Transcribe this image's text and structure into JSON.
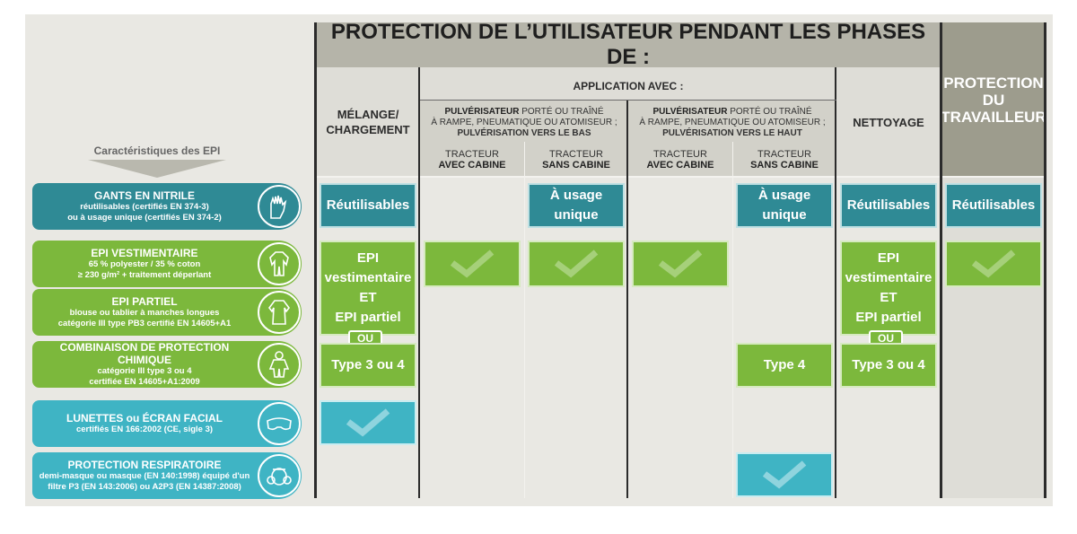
{
  "header": {
    "title": "PROTECTION DE L’UTILISATEUR PENDANT LES PHASES DE :",
    "protection_travailleur": [
      "PROTECTION",
      "DU",
      "TRAVAILLEUR"
    ],
    "melange": [
      "MÉLANGE/",
      "CHARGEMENT"
    ],
    "application": "APPLICATION AVEC :",
    "nettoyage": "NETTOYAGE",
    "pulv_bas": {
      "strong": "PULVÉRISATEUR",
      "l1": " PORTÉ OU TRAÎNÉ",
      "l2": "À RAMPE, PNEUMATIQUE OU ATOMISEUR ;",
      "l3": "PULVÉRISATION VERS LE BAS"
    },
    "pulv_haut": {
      "strong": "PULVÉRISATEUR",
      "l1": " PORTÉ OU TRAÎNÉ",
      "l2": "À RAMPE, PNEUMATIQUE OU ATOMISEUR ;",
      "l3": "PULVÉRISATION VERS LE HAUT"
    },
    "tracteurs": [
      {
        "l1": "TRACTEUR",
        "l2": "AVEC CABINE"
      },
      {
        "l1": "TRACTEUR",
        "l2": "SANS CABINE"
      },
      {
        "l1": "TRACTEUR",
        "l2": "AVEC CABINE"
      },
      {
        "l1": "TRACTEUR",
        "l2": "SANS CABINE"
      }
    ],
    "epi_label": "Caractéristiques des EPI"
  },
  "rows": {
    "gants": {
      "title": "GANTS EN NITRILE",
      "d1": "réutilisables (certifiés EN 374-3)",
      "d2": "ou à usage unique (certifiés EN 374-2)",
      "icon": "gloves-icon"
    },
    "vest": {
      "title": "EPI VESTIMENTAIRE",
      "d1": "65 % polyester / 35 % coton",
      "d2": "≥ 230 g/m² + traitement déperlant",
      "icon": "coverall-icon"
    },
    "partiel": {
      "title": "EPI PARTIEL",
      "d1": "blouse ou tablier à manches longues",
      "d2": "catégorie III type PB3 certifié EN 14605+A1",
      "icon": "apron-icon"
    },
    "combi": {
      "title": "COMBINAISON DE PROTECTION CHIMIQUE",
      "d1": "catégorie III type 3 ou 4",
      "d2": "certifiée EN 14605+A1:2009",
      "icon": "hazmat-suit-icon"
    },
    "lunettes": {
      "title": "LUNETTES ou ÉCRAN FACIAL",
      "d1": "certifiés EN 166:2002 (CE, sigle 3)",
      "icon": "goggles-icon"
    },
    "resp": {
      "title": "PROTECTION RESPIRATOIRE",
      "d1": "demi-masque ou masque (EN 140:1998) équipé d'un",
      "d2": "filtre P3 (EN 143:2006) ou A2P3 (EN 14387:2008)",
      "icon": "respirator-icon"
    }
  },
  "cells": {
    "reutilisables": "Réutilisables",
    "usage_unique": "À usage unique",
    "epi_vest": [
      "EPI",
      "vestimentaire",
      "ET",
      "EPI partiel"
    ],
    "ou": "OU",
    "type34": "Type 3 ou 4",
    "type4": "Type 4"
  },
  "colors": {
    "teal": "#2f8a95",
    "green": "#7cb83c",
    "cyan": "#3fb4c4",
    "header_gray": "#b5b4a9",
    "dark_gray": "#9d9c8d"
  }
}
